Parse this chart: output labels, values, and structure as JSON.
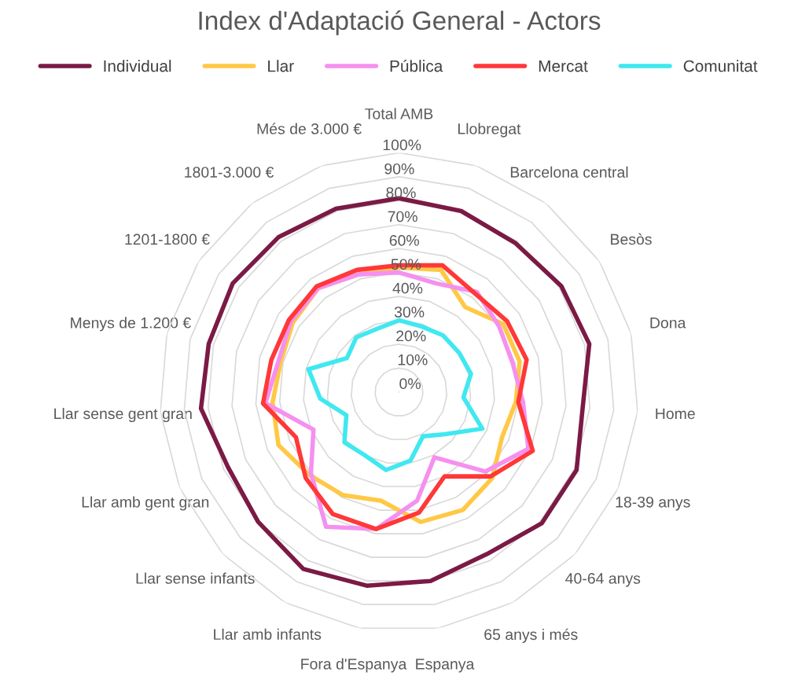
{
  "chart_data": {
    "type": "radar",
    "title": "Index d'Adaptació General - Actors",
    "categories": [
      "Total AMB",
      "Llobregat",
      "Barcelona central",
      "Besòs",
      "Dona",
      "Home",
      "18-39 anys",
      "40-64 anys",
      "65 anys i més",
      "Espanya",
      "Fora d'Espanya",
      "Llar amb infants",
      "Llar sense infants",
      "Llar amb gent gran",
      "Llar sense gent gran",
      "Menys de 1.200 €",
      "1201-1800 €",
      "1801-3.000 €",
      "Més de 3.000 €"
    ],
    "series": [
      {
        "name": "Individual",
        "color": "#7b1a45",
        "values": [
          81,
          80,
          79,
          81,
          82,
          77,
          81,
          81,
          77,
          80,
          82,
          84,
          80,
          78,
          83,
          82,
          83,
          82,
          81
        ]
      },
      {
        "name": "Llar",
        "color": "#ffc845",
        "values": [
          52,
          54,
          45,
          52,
          52,
          49,
          47,
          53,
          56,
          55,
          46,
          49,
          51,
          55,
          53,
          51,
          53,
          55,
          52
        ]
      },
      {
        "name": "Pública",
        "color": "#f590f0",
        "values": [
          50,
          48,
          53,
          50,
          49,
          52,
          59,
          49,
          31,
          46,
          58,
          64,
          50,
          39,
          56,
          52,
          54,
          55,
          52
        ]
      },
      {
        "name": "Mercat",
        "color": "#ff3838",
        "values": [
          53,
          56,
          52,
          54,
          55,
          50,
          61,
          52,
          40,
          51,
          58,
          58,
          53,
          47,
          57,
          55,
          55,
          56,
          54
        ]
      },
      {
        "name": "Comunitat",
        "color": "#40e8f0",
        "values": [
          30,
          29,
          30,
          30,
          31,
          27,
          38,
          26,
          21,
          29,
          33,
          30,
          31,
          24,
          33,
          39,
          26,
          29,
          28
        ]
      }
    ],
    "ylim": [
      0,
      100
    ],
    "yticks": [
      {
        "value": 0,
        "label": "0%"
      },
      {
        "value": 10,
        "label": "10%"
      },
      {
        "value": 20,
        "label": "20%"
      },
      {
        "value": 30,
        "label": "30%"
      },
      {
        "value": 40,
        "label": "40%"
      },
      {
        "value": 50,
        "label": "50%"
      },
      {
        "value": 60,
        "label": "60%"
      },
      {
        "value": 70,
        "label": "70%"
      },
      {
        "value": 80,
        "label": "80%"
      },
      {
        "value": 90,
        "label": "90%"
      },
      {
        "value": 100,
        "label": "100%"
      }
    ],
    "grid": true,
    "legend": "top"
  }
}
